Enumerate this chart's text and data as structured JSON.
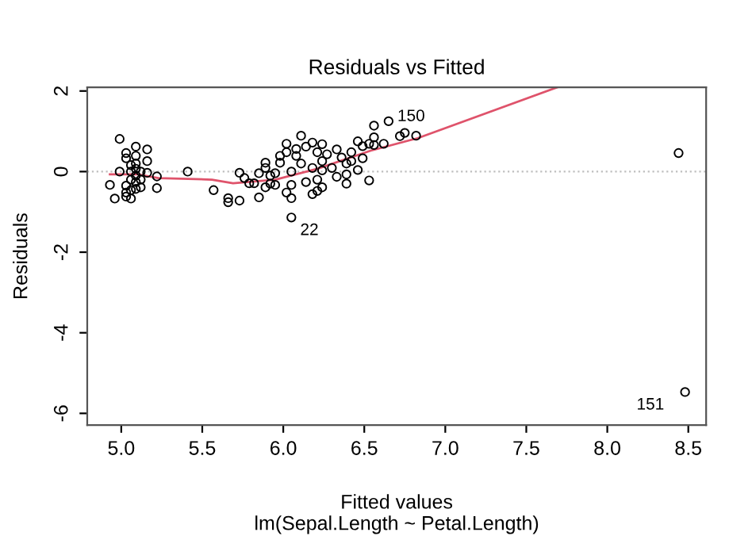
{
  "chart_data": {
    "type": "scatter",
    "title": "Residuals vs Fitted",
    "xlabel": "Fitted values\nlm(Sepal.Length ~ Petal.Length)",
    "ylabel": "Residuals",
    "xlim": [
      4.79,
      8.61
    ],
    "ylim": [
      -6.29,
      2.09
    ],
    "xticks": [
      {
        "value": 5,
        "label": "5.0"
      },
      5.5,
      {
        "value": 6,
        "label": "6.0"
      },
      6.5,
      {
        "value": 7,
        "label": "7.0"
      },
      7.5,
      {
        "value": 8,
        "label": "8.0"
      },
      8.5
    ],
    "yticks": [
      -6,
      -4,
      -2,
      0,
      2
    ],
    "grid": false,
    "series": [
      {
        "color": "#000000",
        "marker": "circle",
        "x": [
          4.93,
          4.96,
          4.99,
          4.99,
          5.03,
          5.03,
          5.03,
          5.03,
          5.03,
          5.06,
          5.06,
          5.06,
          5.06,
          5.06,
          5.09,
          5.09,
          5.09,
          5.09,
          5.09,
          5.09,
          5.09,
          5.12,
          5.12,
          5.12,
          5.16,
          5.16,
          5.16,
          5.22,
          5.22,
          5.41,
          5.57,
          5.66,
          5.66,
          5.73,
          5.73,
          5.76,
          5.79,
          5.82,
          5.85,
          5.85,
          5.89,
          5.89,
          5.89,
          5.92,
          5.92,
          5.95,
          5.95,
          5.98,
          5.98,
          6.02,
          6.02,
          6.02,
          6.05,
          6.05,
          6.05,
          6.05,
          6.08,
          6.08,
          6.11,
          6.11,
          6.14,
          6.14,
          6.18,
          6.18,
          6.18,
          6.21,
          6.21,
          6.21,
          6.24,
          6.24,
          6.24,
          6.24,
          6.27,
          6.3,
          6.33,
          6.33,
          6.36,
          6.39,
          6.39,
          6.39,
          6.42,
          6.42,
          6.46,
          6.46,
          6.49,
          6.49,
          6.53,
          6.53,
          6.56,
          6.56,
          6.56,
          6.62,
          6.65,
          6.72,
          6.75,
          6.82,
          8.44,
          8.48
        ],
        "values": [
          -0.33,
          -0.67,
          0.81,
          0,
          0.46,
          0.33,
          -0.35,
          -0.52,
          -0.62,
          0,
          0.16,
          -0.2,
          -0.46,
          -0.67,
          0.62,
          0.39,
          0.2,
          0.07,
          -0.1,
          -0.26,
          -0.43,
          0,
          -0.2,
          -0.39,
          0.55,
          0.26,
          -0.03,
          -0.12,
          -0.41,
          0,
          -0.46,
          -0.66,
          -0.76,
          -0.72,
          -0.03,
          -0.16,
          -0.29,
          -0.29,
          -0.64,
          -0.04,
          0.22,
          0.09,
          -0.39,
          -0.1,
          -0.3,
          -0.04,
          -0.33,
          0.39,
          0.22,
          0.69,
          0.48,
          -0.52,
          -1.14,
          -0.33,
          -0.66,
          0,
          0.39,
          0.56,
          0.89,
          0.2,
          0.62,
          -0.26,
          0.72,
          0.09,
          -0.56,
          0.48,
          -0.2,
          -0.48,
          0.68,
          0.26,
          0.03,
          -0.39,
          0.43,
          0.09,
          0.55,
          -0.13,
          0.35,
          0.2,
          -0.07,
          -0.3,
          0.48,
          0.26,
          0.75,
          0.04,
          0.33,
          0.63,
          -0.22,
          0.69,
          1.14,
          0.85,
          0.66,
          0.69,
          1.25,
          0.88,
          0.96,
          0.89,
          0.46,
          -5.47
        ]
      },
      {
        "type": "line",
        "color": "#df536b",
        "x": [
          4.93,
          5.1,
          5.23,
          5.56,
          5.69,
          5.95,
          6.21,
          6.54,
          6.83,
          7.69
        ],
        "values": [
          -0.07,
          -0.07,
          -0.16,
          -0.2,
          -0.29,
          -0.2,
          0.07,
          0.52,
          0.83,
          2.09
        ]
      }
    ],
    "ref_lines": [
      {
        "axis": "y",
        "value": 0,
        "color": "#bebebe",
        "line_style": "dotted"
      }
    ],
    "annotations": [
      {
        "text": "150",
        "x": 6.65,
        "y": 1.25
      },
      {
        "text": "22",
        "x": 6.05,
        "y": -1.14
      },
      {
        "text": "151",
        "x": 8.48,
        "y": -5.47
      }
    ]
  }
}
